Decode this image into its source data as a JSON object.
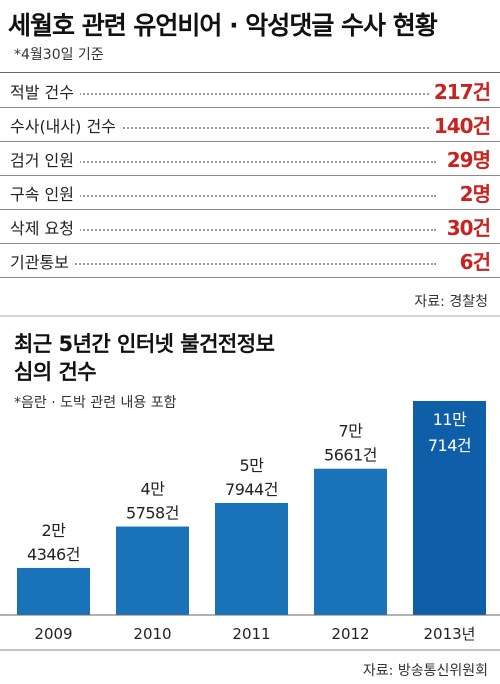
{
  "title": "세월호 관련 유언비어 · 악성댓글 수사 현황",
  "stats_note": "*4월30일 기준",
  "stats": [
    {
      "label": "적발 건수",
      "value": "217건"
    },
    {
      "label": "수사(내사) 건수",
      "value": "140건"
    },
    {
      "label": "검거 인원",
      "value": "29명"
    },
    {
      "label": "구속 인원",
      "value": "2명"
    },
    {
      "label": "삭제 요청",
      "value": "30건"
    },
    {
      "label": "기관통보",
      "value": "6건"
    }
  ],
  "stats_source": "자료: 경찰청",
  "chart_source": "자료: 방송통신위원회",
  "colors": {
    "accent_red": "#c8231e",
    "bar_blue": "#1a73b8",
    "highlight_bar": "#0f5ea8"
  },
  "chart_data": {
    "type": "bar",
    "title_lines": [
      "최근 5년간 인터넷 불건전정보",
      "심의 건수"
    ],
    "note": "*음란 · 도박 관련 내용 포함",
    "categories": [
      "2009",
      "2010",
      "2011",
      "2012",
      "2013년"
    ],
    "values": [
      24346,
      45758,
      57944,
      75661,
      110714
    ],
    "data_labels": [
      [
        "2만",
        "4346건"
      ],
      [
        "4만",
        "5758건"
      ],
      [
        "5만",
        "7944건"
      ],
      [
        "7만",
        "5661건"
      ],
      [
        "11만",
        "714건"
      ]
    ],
    "highlight_index": 4,
    "ylim": [
      0,
      120000
    ],
    "grid": false,
    "xlabel": "",
    "ylabel": ""
  }
}
